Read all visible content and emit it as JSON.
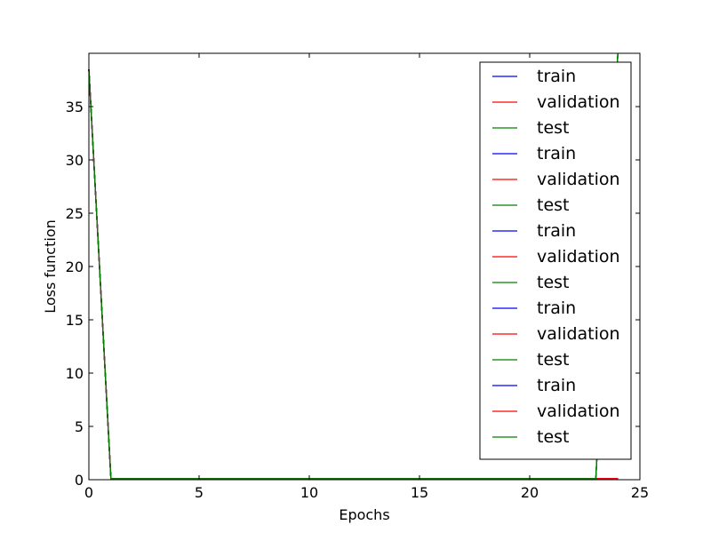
{
  "chart_data": {
    "type": "line",
    "title": "",
    "xlabel": "Epochs",
    "ylabel": "Loss function",
    "xlim": [
      0,
      25
    ],
    "ylim": [
      0,
      40
    ],
    "xticks": [
      0,
      5,
      10,
      15,
      20,
      25
    ],
    "yticks": [
      0,
      5,
      10,
      15,
      20,
      25,
      30,
      35
    ],
    "grid": false,
    "legend_position": "top-right",
    "x": [
      0,
      1,
      2,
      3,
      4,
      5,
      6,
      7,
      8,
      9,
      10,
      11,
      12,
      13,
      14,
      15,
      16,
      17,
      18,
      19,
      20,
      21,
      22,
      23,
      24
    ],
    "series": [
      {
        "name": "train",
        "color": "#0000ff",
        "values": [
          38.5,
          0.1,
          0.1,
          0.1,
          0.1,
          0.1,
          0.1,
          0.1,
          0.1,
          0.1,
          0.1,
          0.1,
          0.1,
          0.1,
          0.1,
          0.1,
          0.1,
          0.1,
          0.1,
          0.1,
          0.1,
          0.1,
          0.1,
          0.1,
          0.1
        ]
      },
      {
        "name": "validation",
        "color": "#ff0000",
        "values": [
          38.5,
          0.1,
          0.1,
          0.1,
          0.1,
          0.1,
          0.1,
          0.1,
          0.1,
          0.1,
          0.1,
          0.1,
          0.1,
          0.1,
          0.1,
          0.1,
          0.1,
          0.1,
          0.1,
          0.1,
          0.1,
          0.1,
          0.1,
          0.1,
          0.1
        ]
      },
      {
        "name": "test",
        "color": "#008000",
        "values": [
          38.5,
          0.1,
          0.1,
          0.1,
          0.1,
          0.1,
          0.1,
          0.1,
          0.1,
          0.1,
          0.1,
          0.1,
          0.1,
          0.1,
          0.1,
          0.1,
          0.1,
          0.1,
          0.1,
          0.1,
          0.1,
          0.1,
          0.1,
          0.1,
          40
        ]
      },
      {
        "name": "train",
        "color": "#0000ff",
        "values": [
          38.5,
          0.1,
          0.1,
          0.1,
          0.1,
          0.1,
          0.1,
          0.1,
          0.1,
          0.1,
          0.1,
          0.1,
          0.1,
          0.1,
          0.1,
          0.1,
          0.1,
          0.1,
          0.1,
          0.1,
          0.1,
          0.1,
          0.1,
          0.1,
          0.1
        ]
      },
      {
        "name": "validation",
        "color": "#ff0000",
        "values": [
          38.5,
          0.1,
          0.1,
          0.1,
          0.1,
          0.1,
          0.1,
          0.1,
          0.1,
          0.1,
          0.1,
          0.1,
          0.1,
          0.1,
          0.1,
          0.1,
          0.1,
          0.1,
          0.1,
          0.1,
          0.1,
          0.1,
          0.1,
          0.1,
          0.1
        ]
      },
      {
        "name": "test",
        "color": "#008000",
        "values": [
          38.5,
          0.1,
          0.1,
          0.1,
          0.1,
          0.1,
          0.1,
          0.1,
          0.1,
          0.1,
          0.1,
          0.1,
          0.1,
          0.1,
          0.1,
          0.1,
          0.1,
          0.1,
          0.1,
          0.1,
          0.1,
          0.1,
          0.1,
          0.1,
          40
        ]
      },
      {
        "name": "train",
        "color": "#0000ff",
        "values": [
          38.5,
          0.1,
          0.1,
          0.1,
          0.1,
          0.1,
          0.1,
          0.1,
          0.1,
          0.1,
          0.1,
          0.1,
          0.1,
          0.1,
          0.1,
          0.1,
          0.1,
          0.1,
          0.1,
          0.1,
          0.1,
          0.1,
          0.1,
          0.1,
          0.1
        ]
      },
      {
        "name": "validation",
        "color": "#ff0000",
        "values": [
          38.5,
          0.1,
          0.1,
          0.1,
          0.1,
          0.1,
          0.1,
          0.1,
          0.1,
          0.1,
          0.1,
          0.1,
          0.1,
          0.1,
          0.1,
          0.1,
          0.1,
          0.1,
          0.1,
          0.1,
          0.1,
          0.1,
          0.1,
          0.1,
          0.1
        ]
      },
      {
        "name": "test",
        "color": "#008000",
        "values": [
          38.5,
          0.1,
          0.1,
          0.1,
          0.1,
          0.1,
          0.1,
          0.1,
          0.1,
          0.1,
          0.1,
          0.1,
          0.1,
          0.1,
          0.1,
          0.1,
          0.1,
          0.1,
          0.1,
          0.1,
          0.1,
          0.1,
          0.1,
          0.1,
          40
        ]
      },
      {
        "name": "train",
        "color": "#0000ff",
        "values": [
          38.5,
          0.1,
          0.1,
          0.1,
          0.1,
          0.1,
          0.1,
          0.1,
          0.1,
          0.1,
          0.1,
          0.1,
          0.1,
          0.1,
          0.1,
          0.1,
          0.1,
          0.1,
          0.1,
          0.1,
          0.1,
          0.1,
          0.1,
          0.1,
          0.1
        ]
      },
      {
        "name": "validation",
        "color": "#ff0000",
        "values": [
          38.5,
          0.1,
          0.1,
          0.1,
          0.1,
          0.1,
          0.1,
          0.1,
          0.1,
          0.1,
          0.1,
          0.1,
          0.1,
          0.1,
          0.1,
          0.1,
          0.1,
          0.1,
          0.1,
          0.1,
          0.1,
          0.1,
          0.1,
          0.1,
          0.1
        ]
      },
      {
        "name": "test",
        "color": "#008000",
        "values": [
          38.5,
          0.1,
          0.1,
          0.1,
          0.1,
          0.1,
          0.1,
          0.1,
          0.1,
          0.1,
          0.1,
          0.1,
          0.1,
          0.1,
          0.1,
          0.1,
          0.1,
          0.1,
          0.1,
          0.1,
          0.1,
          0.1,
          0.1,
          0.1,
          40
        ]
      },
      {
        "name": "train",
        "color": "#0000ff",
        "values": [
          38.5,
          0.1,
          0.1,
          0.1,
          0.1,
          0.1,
          0.1,
          0.1,
          0.1,
          0.1,
          0.1,
          0.1,
          0.1,
          0.1,
          0.1,
          0.1,
          0.1,
          0.1,
          0.1,
          0.1,
          0.1,
          0.1,
          0.1,
          0.1,
          0.1
        ]
      },
      {
        "name": "validation",
        "color": "#ff0000",
        "values": [
          38.5,
          0.1,
          0.1,
          0.1,
          0.1,
          0.1,
          0.1,
          0.1,
          0.1,
          0.1,
          0.1,
          0.1,
          0.1,
          0.1,
          0.1,
          0.1,
          0.1,
          0.1,
          0.1,
          0.1,
          0.1,
          0.1,
          0.1,
          0.1,
          0.1
        ]
      },
      {
        "name": "test",
        "color": "#008000",
        "values": [
          38.5,
          0.1,
          0.1,
          0.1,
          0.1,
          0.1,
          0.1,
          0.1,
          0.1,
          0.1,
          0.1,
          0.1,
          0.1,
          0.1,
          0.1,
          0.1,
          0.1,
          0.1,
          0.1,
          0.1,
          0.1,
          0.1,
          0.1,
          0.1,
          40
        ]
      }
    ]
  }
}
